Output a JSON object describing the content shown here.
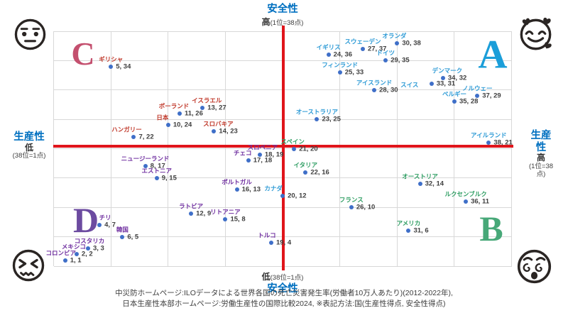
{
  "colors": {
    "axis_red": "#e0151b",
    "title_blue": "#0070c0",
    "dot_blue": "#3f6fc8",
    "grid": "#d8d8d8",
    "value_text": "#3f3f3f",
    "face": "#2a2523"
  },
  "axis": {
    "safety": "安全性",
    "productivity": "生産性",
    "high": "高",
    "low": "低",
    "rank_high": "(1位=38点)",
    "rank_low": "(38位=1点)"
  },
  "quadrants": [
    {
      "id": "A",
      "letter": "A",
      "letter_color": "#1b9ed9",
      "label_color": "#2e9bd6",
      "mood_icon": "smiling-face-with-hearts"
    },
    {
      "id": "B",
      "letter": "B",
      "letter_color": "#47a878",
      "label_color": "#2f9e63",
      "mood_icon": "dizzy-face"
    },
    {
      "id": "C",
      "letter": "C",
      "letter_color": "#c4506f",
      "label_color": "#c0392b",
      "mood_icon": "neutral-face"
    },
    {
      "id": "D",
      "letter": "D",
      "letter_color": "#6c4ba0",
      "label_color": "#7030a0",
      "mood_icon": "confounded-face"
    }
  ],
  "footer": {
    "line1": "中災防ホームページ:ILOデータによる世界各国の死亡災害発生率(労働者10万人あたり)(2012-2022年),",
    "line2": "日本生産性本部ホームページ:労働生産性の国際比較2024, ※表記方法:国(生産性得点, 安全性得点)"
  },
  "chart_data": {
    "type": "scatter",
    "xlabel": "生産性",
    "ylabel": "安全性",
    "xlim": [
      0,
      40
    ],
    "ylim": [
      0,
      40
    ],
    "grid": true,
    "score_note": "1位=38点, 38位=1点",
    "points": [
      {
        "name": "オランダ",
        "x": 30,
        "y": 38,
        "group": "A",
        "ldx": -4
      },
      {
        "name": "スウェーデン",
        "x": 27,
        "y": 37,
        "group": "A"
      },
      {
        "name": "イギリス",
        "x": 24,
        "y": 36,
        "group": "A"
      },
      {
        "name": "ドイツ",
        "x": 29,
        "y": 35,
        "group": "A"
      },
      {
        "name": "フィンランド",
        "x": 25,
        "y": 33,
        "group": "A"
      },
      {
        "name": "デンマーク",
        "x": 34,
        "y": 32,
        "group": "A",
        "ldx": 6
      },
      {
        "name": "スイス",
        "x": 33,
        "y": 31,
        "group": "A",
        "ldx": -31,
        "ldy": 12
      },
      {
        "name": "アイスランド",
        "x": 28,
        "y": 30,
        "group": "A"
      },
      {
        "name": "ノルウェー",
        "x": 37,
        "y": 29,
        "group": "A"
      },
      {
        "name": "ベルギー",
        "x": 35,
        "y": 28,
        "group": "A"
      },
      {
        "name": "オーストラリア",
        "x": 23,
        "y": 25,
        "group": "A"
      },
      {
        "name": "アイルランド",
        "x": 38,
        "y": 21,
        "group": "A"
      },
      {
        "name": "カナダ",
        "x": 20,
        "y": 12,
        "group": "A",
        "ldx": -13
      },
      {
        "name": "ギリシャ",
        "x": 5,
        "y": 34,
        "group": "C"
      },
      {
        "name": "イスラエル",
        "x": 13,
        "y": 27,
        "group": "C",
        "ldx": 6
      },
      {
        "name": "ポーランド",
        "x": 11,
        "y": 26,
        "group": "C",
        "ldx": -8
      },
      {
        "name": "日本",
        "x": 10,
        "y": 24,
        "group": "C",
        "ldx": -8
      },
      {
        "name": "スロバキア",
        "x": 14,
        "y": 23,
        "group": "C",
        "ldx": 6
      },
      {
        "name": "ハンガリー",
        "x": 7,
        "y": 22,
        "group": "C",
        "ldx": -10
      },
      {
        "name": "スペイン",
        "x": 21,
        "y": 20,
        "group": "B",
        "ldx": -2
      },
      {
        "name": "イタリア",
        "x": 22,
        "y": 16,
        "group": "B"
      },
      {
        "name": "オーストリア",
        "x": 32,
        "y": 14,
        "group": "B"
      },
      {
        "name": "ルクセンブルク",
        "x": 36,
        "y": 11,
        "group": "B"
      },
      {
        "name": "フランス",
        "x": 26,
        "y": 10,
        "group": "B"
      },
      {
        "name": "アメリカ",
        "x": 31,
        "y": 6,
        "group": "B"
      },
      {
        "name": "スロベニア",
        "x": 18,
        "y": 19,
        "group": "D",
        "ldx": 4
      },
      {
        "name": "チェコ",
        "x": 17,
        "y": 18,
        "group": "D",
        "ldx": -8
      },
      {
        "name": "ニュージーランド",
        "x": 8,
        "y": 17,
        "group": "D"
      },
      {
        "name": "エストニア",
        "x": 9,
        "y": 15,
        "group": "D"
      },
      {
        "name": "ポルトガル",
        "x": 16,
        "y": 13,
        "group": "D"
      },
      {
        "name": "ラトビア",
        "x": 12,
        "y": 9,
        "group": "D"
      },
      {
        "name": "リトアニア",
        "x": 15,
        "y": 8,
        "group": "D"
      },
      {
        "name": "チリ",
        "x": 4,
        "y": 7,
        "group": "D",
        "ldx": 8
      },
      {
        "name": "韓国",
        "x": 6,
        "y": 5,
        "group": "D"
      },
      {
        "name": "コスタリカ",
        "x": 3,
        "y": 3,
        "group": "D",
        "ldx": 2
      },
      {
        "name": "メキシコ",
        "x": 2,
        "y": 2,
        "group": "D",
        "ldx": -4
      },
      {
        "name": "コロンビア",
        "x": 1,
        "y": 1,
        "group": "D",
        "ldx": -6
      },
      {
        "name": "トルコ",
        "x": 19,
        "y": 4,
        "group": "D",
        "ldx": -6
      }
    ]
  }
}
